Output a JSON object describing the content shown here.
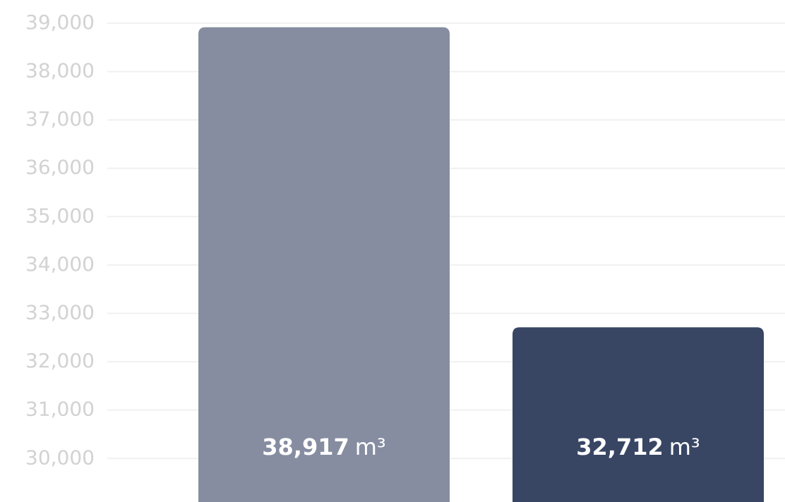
{
  "chart_data": {
    "type": "bar",
    "values": [
      38917,
      32712
    ],
    "value_labels": [
      "38,917",
      "32,712"
    ],
    "unit": "m³",
    "colors": [
      "#868da0",
      "#384664"
    ],
    "ylim": [
      29100,
      39480
    ],
    "yticks": [
      {
        "value": 30000,
        "label": "30,000"
      },
      {
        "value": 31000,
        "label": "31,000"
      },
      {
        "value": 32000,
        "label": "32,000"
      },
      {
        "value": 33000,
        "label": "33,000"
      },
      {
        "value": 34000,
        "label": "34,000"
      },
      {
        "value": 35000,
        "label": "35,000"
      },
      {
        "value": 36000,
        "label": "36,000"
      },
      {
        "value": 37000,
        "label": "37,000"
      },
      {
        "value": 38000,
        "label": "38,000"
      },
      {
        "value": 39000,
        "label": "39,000"
      }
    ],
    "grid": true
  }
}
